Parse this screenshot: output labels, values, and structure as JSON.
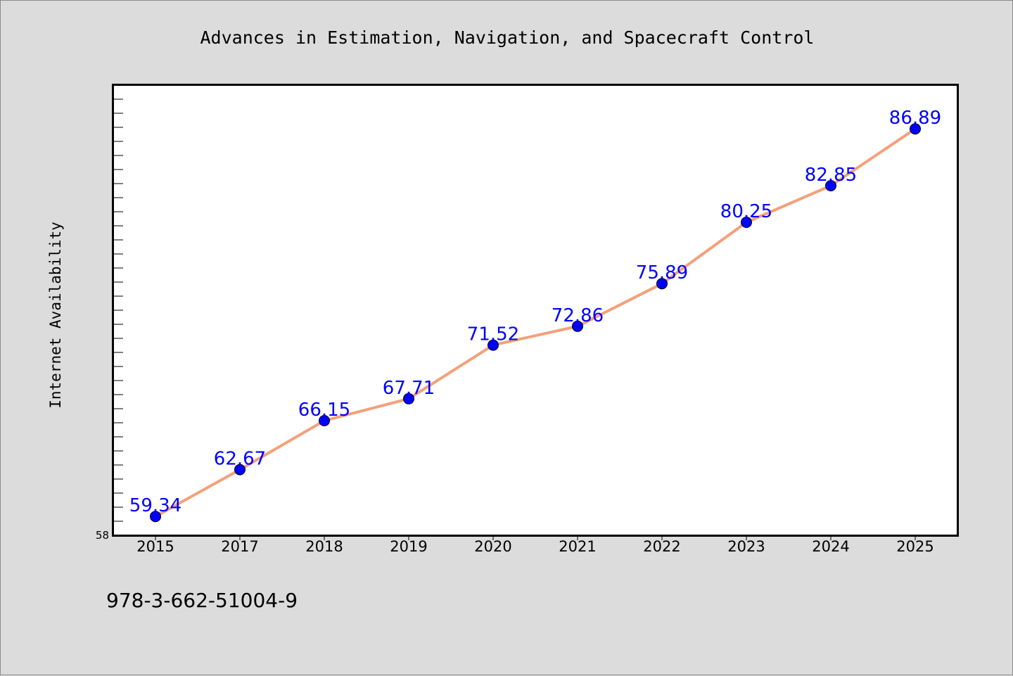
{
  "colors": {
    "background": "#dcdcdc",
    "plot_background": "#ffffff",
    "line": "#f4a07a",
    "marker": "#0000ff",
    "label": "#0000ff"
  },
  "footer": {
    "isbn": "978-3-662-51004-9"
  },
  "chart_data": {
    "type": "line",
    "title": "Advances in Estimation, Navigation, and Spacecraft Control",
    "xlabel": "",
    "ylabel": "Internet Availability",
    "categories": [
      "2015",
      "2017",
      "2018",
      "2019",
      "2020",
      "2021",
      "2022",
      "2023",
      "2024",
      "2025"
    ],
    "series": [
      {
        "values": [
          59.34,
          62.67,
          66.15,
          67.71,
          71.52,
          72.86,
          75.89,
          80.25,
          82.85,
          86.89
        ]
      }
    ],
    "ylim": [
      58,
      90
    ],
    "y_tick_labels": [
      "58"
    ],
    "y_minor_step": 1,
    "grid": false,
    "legend": "none",
    "data_labels": true
  }
}
